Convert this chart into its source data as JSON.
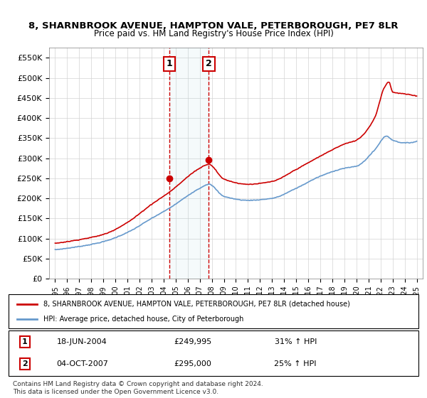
{
  "title1": "8, SHARNBROOK AVENUE, HAMPTON VALE, PETERBOROUGH, PE7 8LR",
  "title2": "Price paid vs. HM Land Registry's House Price Index (HPI)",
  "legend1": "8, SHARNBROOK AVENUE, HAMPTON VALE, PETERBOROUGH, PE7 8LR (detached house)",
  "legend2": "HPI: Average price, detached house, City of Peterborough",
  "sale1_date": "18-JUN-2004",
  "sale1_price": 249995,
  "sale1_label": "31% ↑ HPI",
  "sale2_date": "04-OCT-2007",
  "sale2_price": 295000,
  "sale2_label": "25% ↑ HPI",
  "sale1_x": 2004.46,
  "sale2_x": 2007.75,
  "footnote": "Contains HM Land Registry data © Crown copyright and database right 2024.\nThis data is licensed under the Open Government Licence v3.0.",
  "red_color": "#cc0000",
  "blue_color": "#6699cc",
  "ylim": [
    0,
    575000
  ],
  "yticks": [
    0,
    50000,
    100000,
    150000,
    200000,
    250000,
    300000,
    350000,
    400000,
    450000,
    500000,
    550000
  ],
  "ytick_labels": [
    "£0",
    "£50K",
    "£100K",
    "£150K",
    "£200K",
    "£250K",
    "£300K",
    "£350K",
    "£400K",
    "£450K",
    "£500K",
    "£550K"
  ],
  "xtick_years": [
    1995,
    1996,
    1997,
    1998,
    1999,
    2000,
    2001,
    2002,
    2003,
    2004,
    2005,
    2006,
    2007,
    2008,
    2009,
    2010,
    2011,
    2012,
    2013,
    2014,
    2015,
    2016,
    2017,
    2018,
    2019,
    2020,
    2021,
    2022,
    2023,
    2024,
    2025
  ]
}
